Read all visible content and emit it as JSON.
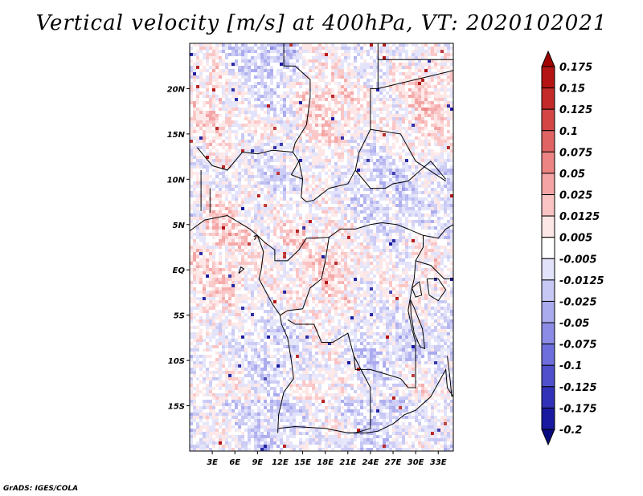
{
  "title": "Vertical velocity [m/s] at 400hPa, VT: 2020102021",
  "credit": "GrADS: IGES/COLA",
  "chart_data": {
    "type": "heatmap",
    "title": "Vertical velocity [m/s] at 400hPa, VT: 2020102021",
    "variable": "Vertical velocity",
    "units": "m/s",
    "level": "400hPa",
    "valid_time": "2020102021",
    "x_range": [
      0,
      35
    ],
    "y_range": [
      -20,
      25
    ],
    "x_ticks": [
      {
        "value": 3,
        "label": "3E"
      },
      {
        "value": 6,
        "label": "6E"
      },
      {
        "value": 9,
        "label": "9E"
      },
      {
        "value": 12,
        "label": "12E"
      },
      {
        "value": 15,
        "label": "15E"
      },
      {
        "value": 18,
        "label": "18E"
      },
      {
        "value": 21,
        "label": "21E"
      },
      {
        "value": 24,
        "label": "24E"
      },
      {
        "value": 27,
        "label": "27E"
      },
      {
        "value": 30,
        "label": "30E"
      },
      {
        "value": 33,
        "label": "33E"
      }
    ],
    "y_ticks": [
      {
        "value": 20,
        "label": "20N"
      },
      {
        "value": 15,
        "label": "15N"
      },
      {
        "value": 10,
        "label": "10N"
      },
      {
        "value": 5,
        "label": "5N"
      },
      {
        "value": 0,
        "label": "EQ"
      },
      {
        "value": -5,
        "label": "5S"
      },
      {
        "value": -10,
        "label": "10S"
      },
      {
        "value": -15,
        "label": "15S"
      }
    ],
    "colorbar": {
      "levels": [
        "0.175",
        "0.15",
        "0.125",
        "0.1",
        "0.075",
        "0.05",
        "0.025",
        "0.0125",
        "0.005",
        "-0.005",
        "-0.0125",
        "-0.025",
        "-0.05",
        "-0.075",
        "-0.1",
        "-0.125",
        "-0.175",
        "-0.2"
      ],
      "colors": [
        "#a00000",
        "#b41414",
        "#c42a2a",
        "#d44646",
        "#e06464",
        "#ec8484",
        "#f4a4a4",
        "#fac4c4",
        "#fde6e6",
        "#ffffff",
        "#e2e2fa",
        "#c8c8f4",
        "#aaaaee",
        "#8c8ce6",
        "#6e6edc",
        "#5050cc",
        "#3232b8",
        "#1a1aa0",
        "#0a0a80"
      ]
    }
  }
}
